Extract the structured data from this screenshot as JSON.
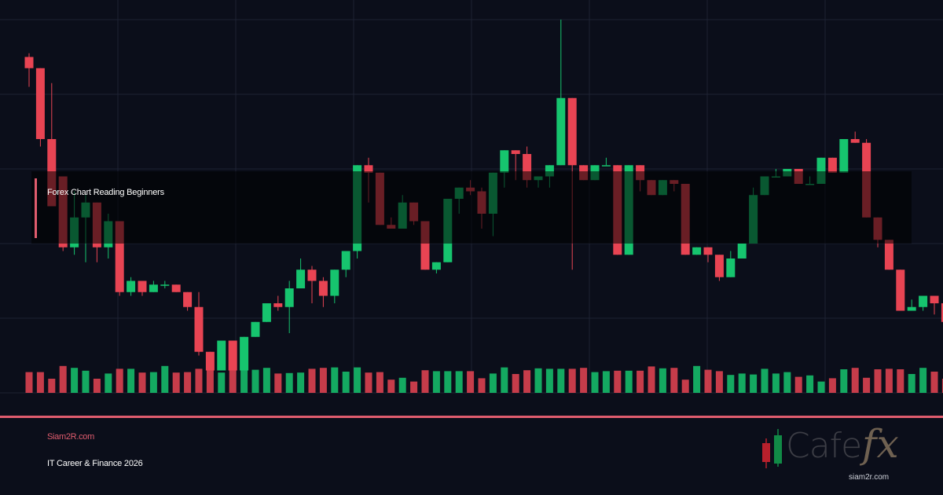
{
  "title": "Forex Chart Reading Beginners",
  "footer": {
    "site": "Siam2R.com",
    "tagline": "IT Career & Finance 2026"
  },
  "logo": {
    "text": "Cafe",
    "fx": "fx",
    "domain": "siam2r.com",
    "icon": "candlestick-icon"
  },
  "colors": {
    "background": "#0b0e1a",
    "grid": "#1e2233",
    "bull": "#16c46e",
    "bear": "#e84453",
    "accent": "#e05c6e"
  },
  "chart_data": {
    "type": "candlestick",
    "grid": true,
    "ohlc": [
      [
        70,
        71,
        62,
        67
      ],
      [
        67,
        67,
        46,
        48
      ],
      [
        48,
        63,
        31,
        30
      ],
      [
        38,
        30,
        18,
        19
      ],
      [
        19,
        34,
        17,
        27
      ],
      [
        27,
        33,
        15,
        31
      ],
      [
        31,
        31,
        15,
        19
      ],
      [
        19,
        28,
        16,
        26
      ],
      [
        26,
        26,
        6,
        7
      ],
      [
        7,
        11,
        6,
        10
      ],
      [
        10,
        10,
        6,
        7
      ],
      [
        7,
        10,
        8,
        9
      ],
      [
        9,
        10,
        8,
        9
      ],
      [
        9,
        9,
        7,
        7
      ],
      [
        7,
        7,
        2,
        3
      ],
      [
        3,
        7,
        -10,
        -9
      ],
      [
        -9,
        -12,
        -12,
        -14
      ],
      [
        -14,
        -13,
        -14,
        -6
      ],
      [
        -6,
        -13,
        -14,
        -14
      ],
      [
        -14,
        -5,
        -13,
        -5
      ],
      [
        -5,
        -6,
        -1,
        -1
      ],
      [
        -1,
        4,
        -1,
        4
      ],
      [
        4,
        6,
        2,
        3
      ],
      [
        3,
        10,
        -4,
        8
      ],
      [
        8,
        16,
        8,
        13
      ],
      [
        13,
        14,
        4,
        10
      ],
      [
        10,
        11,
        3,
        6
      ],
      [
        6,
        13,
        4,
        13
      ],
      [
        13,
        17,
        11,
        18
      ],
      [
        18,
        38,
        16,
        41
      ],
      [
        41,
        43,
        31,
        39
      ],
      [
        39,
        35,
        25,
        25
      ],
      [
        25,
        27,
        26,
        24
      ],
      [
        24,
        33,
        32,
        31
      ],
      [
        31,
        28,
        25,
        26
      ],
      [
        26,
        22,
        13,
        13
      ],
      [
        13,
        15,
        12,
        15
      ],
      [
        15,
        29,
        16,
        32
      ],
      [
        32,
        34,
        28,
        35
      ],
      [
        35,
        37,
        33,
        34
      ],
      [
        34,
        35,
        24,
        28
      ],
      [
        28,
        36,
        22,
        39
      ],
      [
        39,
        44,
        35,
        45
      ],
      [
        45,
        45,
        37,
        44
      ],
      [
        44,
        46,
        35,
        37
      ],
      [
        37,
        37,
        35,
        38
      ],
      [
        38,
        39,
        35,
        41
      ],
      [
        41,
        80,
        55,
        59
      ],
      [
        59,
        59,
        13,
        41
      ],
      [
        41,
        41,
        37,
        37
      ],
      [
        37,
        41,
        43,
        41
      ],
      [
        41,
        43,
        43,
        41
      ],
      [
        41,
        40,
        44,
        17
      ],
      [
        17,
        41,
        48,
        41
      ],
      [
        41,
        35,
        34,
        37
      ],
      [
        37,
        35,
        37,
        33
      ],
      [
        33,
        35,
        37,
        37
      ],
      [
        37,
        37,
        34,
        36
      ],
      [
        36,
        34,
        17,
        17
      ],
      [
        17,
        16,
        17,
        19
      ],
      [
        19,
        18,
        15,
        17
      ],
      [
        17,
        15,
        10,
        11
      ],
      [
        11,
        18,
        11,
        16
      ],
      [
        16,
        20,
        22,
        20
      ],
      [
        20,
        35,
        20,
        33
      ],
      [
        33,
        35,
        36,
        38
      ],
      [
        38,
        40,
        38,
        38
      ],
      [
        38,
        40,
        39,
        40
      ],
      [
        40,
        40,
        41,
        36
      ],
      [
        36,
        38,
        36,
        36
      ],
      [
        36,
        36,
        47,
        43
      ],
      [
        43,
        42,
        44,
        39
      ],
      [
        39,
        40,
        47,
        48
      ],
      [
        48,
        50,
        52,
        47
      ],
      [
        47,
        48,
        27,
        27
      ],
      [
        27,
        26,
        19,
        21
      ],
      [
        21,
        20,
        15,
        13
      ],
      [
        13,
        12,
        3,
        2
      ],
      [
        2,
        5,
        2,
        3
      ],
      [
        3,
        6,
        2,
        6
      ],
      [
        6,
        5,
        1,
        4
      ],
      [
        4,
        5,
        1,
        -1
      ],
      [
        -1,
        5,
        -1,
        0
      ],
      [
        0,
        12,
        -12,
        -12
      ]
    ],
    "volume": [
      44,
      44,
      30,
      57,
      53,
      47,
      30,
      41,
      51,
      51,
      43,
      44,
      57,
      43,
      44,
      51,
      51,
      43,
      55,
      53,
      49,
      53,
      41,
      42,
      43,
      51,
      53,
      54,
      45,
      54,
      43,
      44,
      28,
      32,
      24,
      48,
      46,
      46,
      46,
      46,
      31,
      41,
      54,
      40,
      48,
      52,
      51,
      51,
      51,
      53,
      44,
      46,
      47,
      47,
      47,
      56,
      52,
      53,
      28,
      57,
      49,
      46,
      38,
      41,
      39,
      51,
      41,
      44,
      34,
      37,
      24,
      31,
      50,
      53,
      32,
      50,
      51,
      50,
      40,
      53,
      45,
      30,
      42,
      34
    ]
  }
}
